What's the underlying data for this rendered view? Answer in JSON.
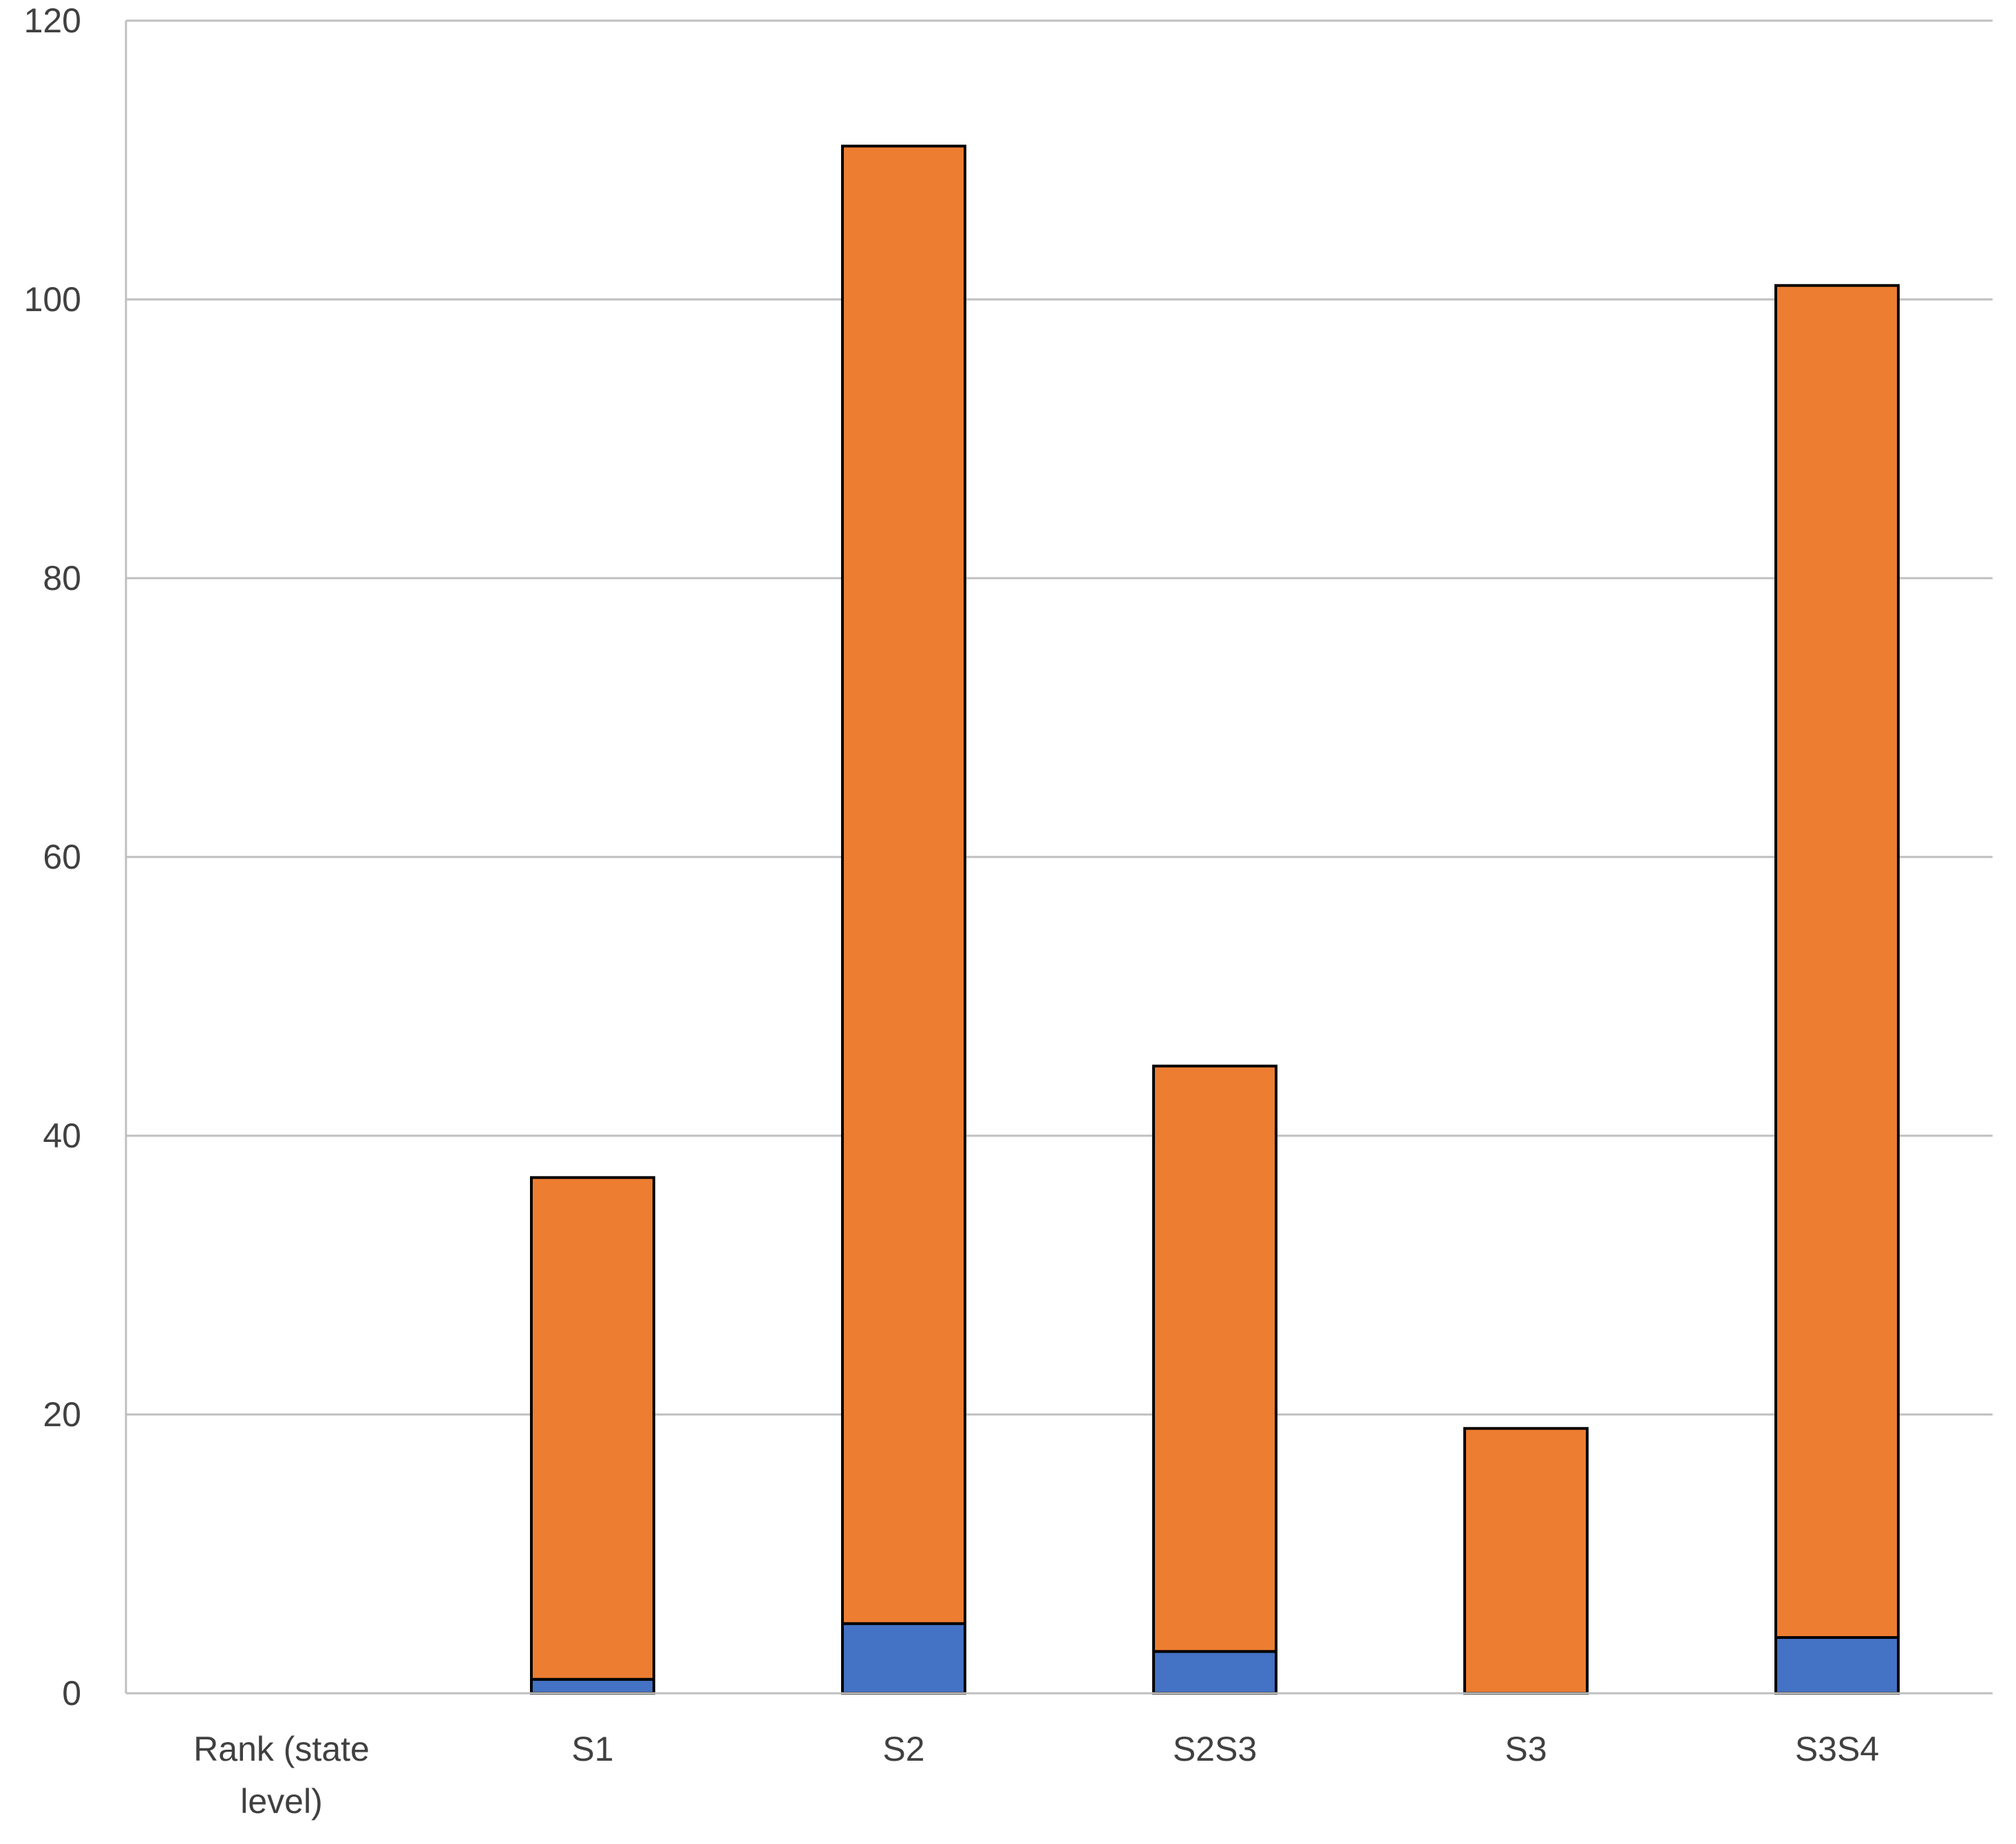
{
  "chart_data": {
    "type": "bar",
    "stacked": true,
    "title": "",
    "xlabel": "",
    "ylabel": "",
    "ylim": [
      0,
      120
    ],
    "yticks": [
      0,
      20,
      40,
      60,
      80,
      100,
      120
    ],
    "grid": true,
    "legend": "none",
    "categories": [
      "Rank (state level)",
      "S1",
      "S2",
      "S2S3",
      "S3",
      "S3S4"
    ],
    "category_lines": [
      [
        "Rank (state",
        "level)"
      ],
      [
        "S1"
      ],
      [
        "S2"
      ],
      [
        "S2S3"
      ],
      [
        "S3"
      ],
      [
        "S3S4"
      ]
    ],
    "series": [
      {
        "values": [
          0,
          1,
          5,
          3,
          0,
          4
        ],
        "color": "#4472C4"
      },
      {
        "values": [
          0,
          36,
          106,
          42,
          19,
          97
        ],
        "color": "#ED7D31"
      }
    ]
  }
}
